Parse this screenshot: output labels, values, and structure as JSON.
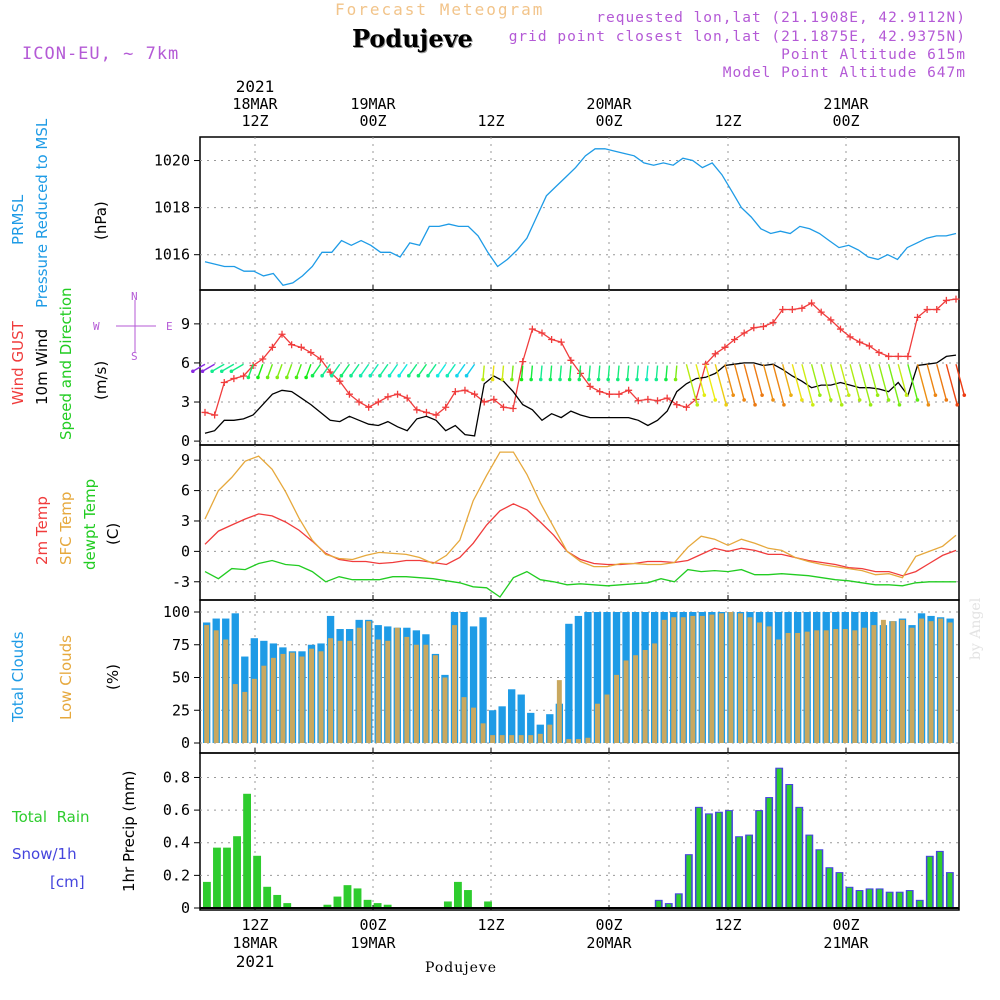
{
  "header": {
    "title": "Forecast Meteogram",
    "location": "Podujeve",
    "model": "ICON-EU, ~ 7km",
    "requested": "requested lon,lat (21.1908E, 42.9112N)",
    "gridpoint": "grid point closest lon,lat (21.1875E, 42.9375N)",
    "point_alt": "Point Altitude 615m",
    "model_alt": "Model Point Altitude 647m",
    "credit": "by Angel",
    "bottom_name": "Podujeve",
    "top_year": "2021",
    "bottom_year": "2021"
  },
  "time_axis": {
    "ticks": [
      {
        "time": "12Z",
        "date": "18MAR"
      },
      {
        "time": "00Z",
        "date": "19MAR"
      },
      {
        "time": "12Z",
        "date": ""
      },
      {
        "time": "00Z",
        "date": "20MAR"
      },
      {
        "time": "12Z",
        "date": ""
      },
      {
        "time": "00Z",
        "date": "21MAR"
      }
    ]
  },
  "panels": {
    "pressure": {
      "title1": "PRMSL",
      "title2": "Pressure Reduced to MSL",
      "unit": "(hPa)"
    },
    "wind": {
      "gust": "Wind GUST",
      "wind10": "10m Wind",
      "dir": "Speed and Direction",
      "unit": "(m/s)",
      "compass_n": "N",
      "compass_s": "S",
      "compass_e": "E",
      "compass_w": "W"
    },
    "temp": {
      "t2m": "2m Temp",
      "sfc": "SFC Temp",
      "dewpt": "dewpt Temp",
      "unit": "(C)"
    },
    "clouds": {
      "total": "Total Clouds",
      "low": "Low Clouds",
      "unit": "(%)"
    },
    "precip": {
      "rain": "Total  Rain",
      "snow": "Snow/1h",
      "snow_unit": "[cm]",
      "unit": "1hr Precip (mm)"
    }
  },
  "colors": {
    "pressure": "#1e9be6",
    "gust": "#f03c3c",
    "wind": "#000000",
    "t2m": "#f03c3c",
    "sfc": "#e6a83c",
    "dewpt": "#22cc22",
    "total_clouds": "#1e9be6",
    "low_clouds": "#c9a85f",
    "rain": "#2ecc2e",
    "snow": "#4444dd",
    "title": "#f2c48a",
    "meta": "#b45ad6"
  },
  "chart_data": [
    {
      "type": "line",
      "title": "PRMSL Pressure Reduced to MSL",
      "ylabel": "hPa",
      "x_hours_from_18MAR00Z": [
        8,
        72
      ],
      "ylim": [
        1014.5,
        1021
      ],
      "yticks": [
        1016,
        1018,
        1020
      ],
      "series": [
        {
          "name": "PRMSL",
          "values": [
            1015.7,
            1015.6,
            1015.5,
            1015.5,
            1015.3,
            1015.3,
            1015.1,
            1015.2,
            1014.7,
            1014.8,
            1015.1,
            1015.5,
            1016.1,
            1016.1,
            1016.6,
            1016.4,
            1016.6,
            1016.4,
            1016.1,
            1016.1,
            1015.9,
            1016.5,
            1016.4,
            1017.2,
            1017.2,
            1017.3,
            1017.2,
            1017.2,
            1016.8,
            1016.1,
            1015.5,
            1015.8,
            1016.2,
            1016.7,
            1017.6,
            1018.5,
            1018.9,
            1019.3,
            1019.7,
            1020.2,
            1020.5,
            1020.5,
            1020.4,
            1020.3,
            1020.2,
            1019.9,
            1019.8,
            1019.9,
            1019.8,
            1020.1,
            1020.0,
            1019.7,
            1019.9,
            1019.4,
            1018.7,
            1018.0,
            1017.6,
            1017.1,
            1016.9,
            1017.0,
            1016.9,
            1017.2,
            1017.1,
            1016.9,
            1016.6,
            1016.3,
            1016.4,
            1016.2,
            1015.9,
            1015.8,
            1016.0,
            1015.8,
            1016.3,
            1016.5,
            1016.7,
            1016.8,
            1016.8,
            1016.9
          ]
        }
      ]
    },
    {
      "type": "line",
      "title": "Wind GUST / 10m Wind Speed and Direction",
      "ylabel": "m/s",
      "ylim": [
        -0.3,
        11.6
      ],
      "yticks": [
        0,
        3,
        6,
        9
      ],
      "series": [
        {
          "name": "Wind GUST",
          "values": [
            2.2,
            2.0,
            4.5,
            4.8,
            5.0,
            5.8,
            6.3,
            7.2,
            8.2,
            7.4,
            7.2,
            6.8,
            6.3,
            5.3,
            4.6,
            3.6,
            3.0,
            2.6,
            3.0,
            3.4,
            3.6,
            3.3,
            2.4,
            2.2,
            2.0,
            2.6,
            3.8,
            3.9,
            3.6,
            3.0,
            3.2,
            2.6,
            2.5,
            6.1,
            8.6,
            8.3,
            7.8,
            7.6,
            6.2,
            5.2,
            4.2,
            3.8,
            3.6,
            3.6,
            3.9,
            3.1,
            3.2,
            3.1,
            3.3,
            2.8,
            2.6,
            3.2,
            5.9,
            6.7,
            7.2,
            7.8,
            8.3,
            8.7,
            8.8,
            9.1,
            10.1,
            10.1,
            10.2,
            10.6,
            9.9,
            9.3,
            8.6,
            8.0,
            7.6,
            7.3,
            6.8,
            6.5,
            6.5,
            6.5,
            9.5,
            10.1,
            10.1,
            10.8,
            10.9
          ]
        },
        {
          "name": "10m Wind",
          "values": [
            0.6,
            0.8,
            1.6,
            1.6,
            1.7,
            2.0,
            2.8,
            3.6,
            3.9,
            3.8,
            3.3,
            2.8,
            2.2,
            1.6,
            1.5,
            1.9,
            1.6,
            1.3,
            1.2,
            1.5,
            1.1,
            0.8,
            1.7,
            1.9,
            1.6,
            0.8,
            1.2,
            0.5,
            0.4,
            4.4,
            5.0,
            4.6,
            3.8,
            2.8,
            2.4,
            1.6,
            2.1,
            1.8,
            2.3,
            2.0,
            1.8,
            1.8,
            1.8,
            1.8,
            1.8,
            1.6,
            1.2,
            1.6,
            2.3,
            3.8,
            4.4,
            4.8,
            4.9,
            5.2,
            5.8,
            5.9,
            6.0,
            6.0,
            5.8,
            5.9,
            5.5,
            5.0,
            4.6,
            4.1,
            4.3,
            4.3,
            4.5,
            4.3,
            4.1,
            4.1,
            4.0,
            3.8,
            4.5,
            3.5,
            5.8,
            5.9,
            6.0,
            6.5,
            6.6
          ]
        }
      ]
    },
    {
      "type": "line",
      "title": "2m Temp / SFC Temp / dewpt Temp",
      "ylabel": "C",
      "ylim": [
        -4.8,
        10.5
      ],
      "yticks": [
        -3,
        0,
        3,
        6,
        9
      ],
      "series": [
        {
          "name": "2m Temp",
          "values": [
            0.7,
            2.0,
            2.6,
            3.2,
            3.7,
            3.5,
            2.9,
            2.1,
            1.0,
            -0.2,
            -0.8,
            -1.0,
            -1.0,
            -1.2,
            -1.1,
            -0.9,
            -0.9,
            -1.1,
            -1.3,
            -0.6,
            0.8,
            2.6,
            4.0,
            4.7,
            4.1,
            2.9,
            1.6,
            0.0,
            -0.8,
            -1.2,
            -1.3,
            -1.3,
            -1.2,
            -1.0,
            -1.0,
            -1.1,
            -0.9,
            -0.3,
            0.3,
            0.0,
            0.3,
            0.1,
            -0.3,
            -0.3,
            -0.6,
            -0.9,
            -1.1,
            -1.3,
            -1.6,
            -1.7,
            -2.0,
            -2.0,
            -2.4,
            -2.0,
            -1.2,
            -0.4,
            0.1
          ]
        },
        {
          "name": "SFC Temp",
          "values": [
            3.2,
            6.0,
            7.3,
            8.9,
            9.4,
            8.1,
            5.9,
            3.3,
            1.1,
            -0.3,
            -0.7,
            -0.8,
            -0.4,
            -0.1,
            -0.2,
            -0.3,
            -0.6,
            -1.2,
            -0.4,
            1.1,
            5.0,
            7.5,
            9.8,
            9.8,
            7.6,
            4.8,
            2.4,
            0.0,
            -1.0,
            -1.5,
            -1.5,
            -1.2,
            -1.2,
            -1.3,
            -1.3,
            -1.1,
            0.4,
            1.5,
            1.2,
            0.6,
            1.2,
            0.8,
            0.3,
            0.1,
            -0.6,
            -1.0,
            -1.3,
            -1.5,
            -1.7,
            -1.9,
            -2.3,
            -2.2,
            -2.6,
            -0.5,
            0.0,
            0.5,
            1.6
          ]
        },
        {
          "name": "dewpt Temp",
          "values": [
            -2.0,
            -2.7,
            -1.7,
            -1.8,
            -1.2,
            -0.9,
            -1.3,
            -1.4,
            -2.0,
            -3.0,
            -2.5,
            -2.8,
            -2.8,
            -2.8,
            -2.5,
            -2.5,
            -2.6,
            -2.7,
            -2.9,
            -3.1,
            -3.5,
            -3.6,
            -4.5,
            -2.6,
            -2.0,
            -2.8,
            -3.0,
            -3.3,
            -3.2,
            -3.3,
            -3.4,
            -3.3,
            -3.2,
            -3.1,
            -2.7,
            -3.0,
            -1.8,
            -2.0,
            -1.9,
            -2.0,
            -1.8,
            -2.3,
            -2.3,
            -2.2,
            -2.3,
            -2.4,
            -2.6,
            -2.8,
            -2.9,
            -3.1,
            -3.3,
            -3.3,
            -3.4,
            -3.1,
            -3.0,
            -3.0,
            -3.0
          ]
        }
      ]
    },
    {
      "type": "bar",
      "title": "Total Clouds / Low Clouds",
      "ylabel": "%",
      "ylim": [
        0,
        100
      ],
      "yticks": [
        0,
        25,
        50,
        75,
        100
      ],
      "series": [
        {
          "name": "Total Clouds",
          "values": [
            92,
            95,
            95,
            99,
            66,
            80,
            78,
            76,
            73,
            70,
            70,
            75,
            76,
            97,
            87,
            87,
            94,
            94,
            90,
            89,
            88,
            88,
            86,
            83,
            68,
            52,
            100,
            100,
            89,
            96,
            25,
            28,
            41,
            37,
            23,
            14,
            22,
            30,
            91,
            97,
            100,
            100,
            100,
            100,
            100,
            100,
            100,
            100,
            100,
            100,
            100,
            100,
            100,
            100,
            100,
            100,
            100,
            100,
            100,
            100,
            100,
            100,
            100,
            100,
            100,
            100,
            100,
            100,
            100,
            100,
            100,
            90,
            93,
            95,
            90,
            99,
            97,
            96,
            95
          ]
        },
        {
          "name": "Low Clouds",
          "values": [
            90,
            86,
            79,
            45,
            39,
            49,
            59,
            65,
            68,
            69,
            66,
            72,
            70,
            80,
            78,
            78,
            88,
            93,
            79,
            78,
            88,
            81,
            75,
            75,
            67,
            50,
            90,
            35,
            27,
            15,
            6,
            6,
            6,
            6,
            6,
            7,
            14,
            48,
            3,
            3,
            4,
            30,
            37,
            52,
            63,
            67,
            71,
            76,
            94,
            96,
            96,
            97,
            97,
            98,
            99,
            100,
            99,
            96,
            92,
            89,
            79,
            84,
            84,
            85,
            86,
            86,
            87,
            87,
            86,
            88,
            90,
            94,
            93,
            94,
            88,
            95,
            93,
            95,
            92
          ]
        }
      ]
    },
    {
      "type": "bar",
      "title": "1hr Precip (mm) Total Rain / Snow 1h",
      "ylabel": "mm",
      "ylim": [
        0,
        0.95
      ],
      "yticks": [
        0,
        0.2,
        0.4,
        0.6,
        0.8
      ],
      "series": [
        {
          "name": "Total Rain",
          "values": [
            0.16,
            0.37,
            0.37,
            0.44,
            0.7,
            0.32,
            0.13,
            0.08,
            0.03,
            0,
            0,
            0,
            0.02,
            0.07,
            0.14,
            0.12,
            0.05,
            0.03,
            0.02,
            0,
            0,
            0,
            0,
            0,
            0.04,
            0.16,
            0.11,
            0,
            0.04,
            0,
            0,
            0,
            0,
            0,
            0,
            0,
            0,
            0,
            0,
            0,
            0,
            0,
            0,
            0,
            0,
            0.05,
            0.03,
            0.09,
            0.33,
            0.62,
            0.58,
            0.59,
            0.6,
            0.44,
            0.45,
            0.6,
            0.68,
            0.86,
            0.76,
            0.62,
            0.45,
            0.36,
            0.25,
            0.22,
            0.13,
            0.11,
            0.12,
            0.12,
            0.1,
            0.1,
            0.11,
            0.05,
            0.32,
            0.35,
            0.22
          ]
        },
        {
          "name": "Snow/1h",
          "values": [
            0,
            0,
            0,
            0,
            0,
            0,
            0,
            0,
            0,
            0,
            0,
            0,
            0,
            0,
            0,
            0,
            0,
            0,
            0,
            0,
            0,
            0,
            0,
            0,
            0,
            0,
            0,
            0,
            0,
            0,
            0,
            0,
            0,
            0,
            0,
            0,
            0,
            0,
            0,
            0,
            0,
            0,
            0,
            0,
            0,
            0.05,
            0.03,
            0.09,
            0.33,
            0.62,
            0.58,
            0.59,
            0.6,
            0.44,
            0.45,
            0.6,
            0.68,
            0.86,
            0.76,
            0.62,
            0.45,
            0.36,
            0.25,
            0.22,
            0.13,
            0.11,
            0.12,
            0.12,
            0.1,
            0.1,
            0.11,
            0.05,
            0.32,
            0.35,
            0.22
          ]
        }
      ]
    }
  ]
}
